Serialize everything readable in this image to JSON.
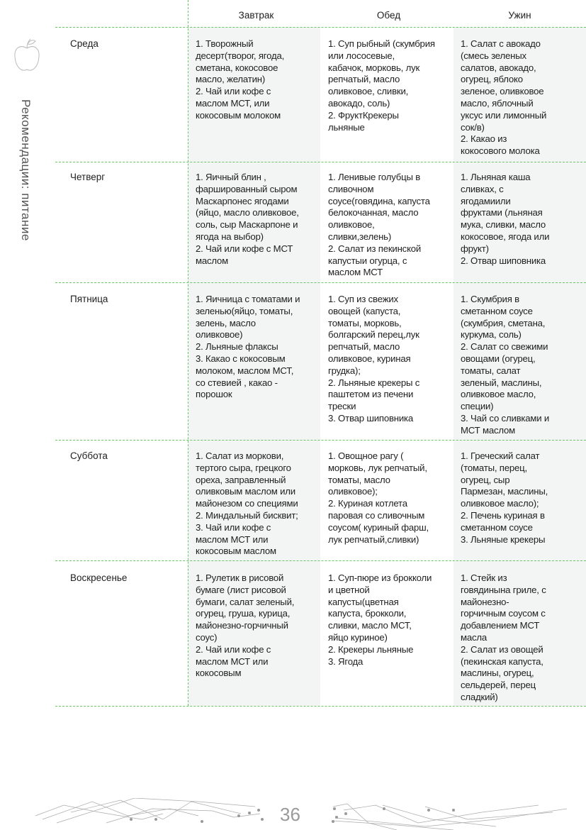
{
  "side_title": "Рекомендации: питание",
  "page_number": "36",
  "accent_color": "#6cc46c",
  "header": {
    "breakfast": "Завтрак",
    "lunch": "Обед",
    "dinner": "Ужин"
  },
  "rows": [
    {
      "day": "Среда",
      "breakfast": "1. Творожный\nдесерт(творог, ягода,\nсметана, кокосовое\nмасло, желатин)\n2. Чай или кофе с\nмаслом МСТ, или\nкокосовым молоком",
      "lunch": "1. Суп рыбный (скумбрия\nили лососевые,\nкабачок, морковь, лук\nрепчатый, масло\nоливковое, сливки,\nавокадо, соль)\n2. ФруктКрекеры\nльняные",
      "dinner": "1. Салат с авокадо\n(смесь зеленых\nсалатов, авокадо,\nогурец, яблоко\nзеленое, оливковое\nмасло, яблочный\nуксус или лимонный\nсок/в)\n2. Какао из\nкокосового молока"
    },
    {
      "day": "Четверг",
      "breakfast": "1. Яичный блин ,\nфаршированный сыром\nМаскарпонес ягодами\n(яйцо, масло оливковое,\nсоль, сыр Маскарпоне и\nягода на выбор)\n2. Чай или кофе с МСТ\nмаслом",
      "lunch": "1. Ленивые голубцы в\nсливочном\nсоусе(говядина, капуста\nбелокочанная, масло\nоливковое,\nсливки,зелень)\n2. Салат из пекинской\nкапустыи огурца, с\nмаслом МСТ",
      "dinner": "1. Льняная каша\nсливках, с\nягодамиили\nфруктами (льняная\nмука, сливки, масло\nкокосовое, ягода или\nфрукт)\n2. Отвар шиповника"
    },
    {
      "day": "Пятница",
      "breakfast": "1. Яичница с томатами и\nзеленью(яйцо, томаты,\nзелень, масло\nоливковое)\n2. Льняные флаксы\n3. Какао с кокосовым\nмолоком, маслом МСТ,\nсо стевией , какао -\nпорошок",
      "lunch": "1. Суп из свежих\nовощей (капуста,\nтоматы, морковь,\nболгарский перец,лук\nрепчатый, масло\nоливковое, куриная\nгрудка);\n2. Льняные крекеры с\nпаштетом из печени\nтрески\n3. Отвар шиповника",
      "dinner": "1. Скумбрия в\nсметанном соусе\n(скумбрия, сметана,\nкуркума, соль)\n2. Салат со свежими\nовощами (огурец,\nтоматы, салат\nзеленый, маслины,\nоливковое масло,\nспеции)\n3. Чай со сливками и\nМСТ маслом"
    },
    {
      "day": "Суббота",
      "breakfast": "1. Салат из моркови,\nтертого сыра, грецкого\nореха, заправленный\nоливковым маслом или\nмайонезом со специями\n2. Миндальный бисквит;\n3. Чай или кофе с\nмаслом МСТ или\nкокосовым маслом",
      "lunch": "1. Овощное рагу (\nморковь, лук репчатый,\nтоматы, масло\nоливковое);\n2. Куриная котлета\nпаровая со сливочным\nсоусом( куриный фарш,\nлук репчатый,сливки)",
      "dinner": "1. Греческий салат\n(томаты, перец,\nогурец, сыр\nПармезан, маслины,\nоливковое масло);\n2. Печень куриная в\nсметанном соусе\n3. Льняные крекеры"
    },
    {
      "day": "Воскресенье",
      "breakfast": "1. Рулетик в рисовой\nбумаге (лист рисовой\nбумаги, салат зеленый,\nогурец, груша, курица,\nмайонезно-горчичный\nсоус)\n2. Чай или кофе с\nмаслом МСТ или\nкокосовым",
      "lunch": "1. Суп-пюре из брокколи\nи цветной\nкапусты(цветная\nкапуста, брокколи,\nсливки, масло МСТ,\nяйцо куриное)\n2. Крекеры льняные\n3. Ягода",
      "dinner": "1. Стейк из\nговядинына гриле, с\nмайонезно-\nгорчичным соусом с\nдобавлением МСТ\nмасла\n2. Салат из овощей\n(пекинская капуста,\nмаслины, огурец,\nсельдерей, перец\nсладкий)"
    }
  ]
}
